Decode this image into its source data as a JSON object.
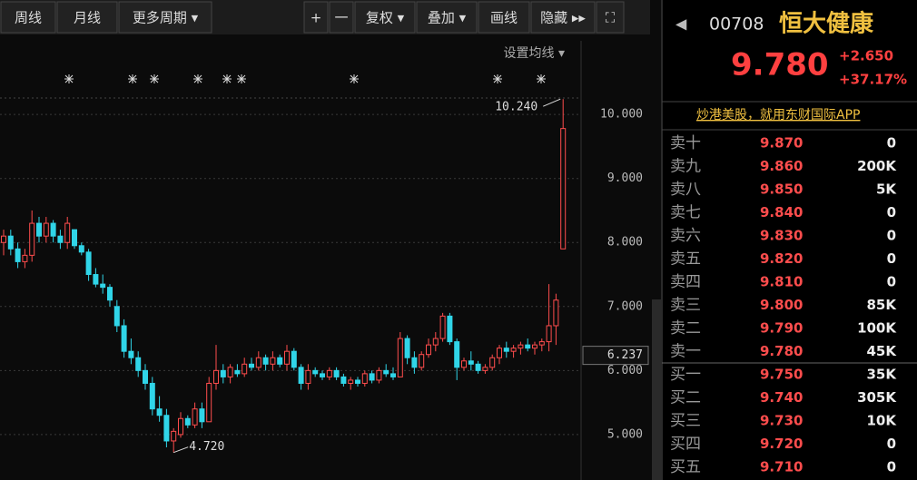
{
  "toolbar": {
    "left": [
      "周线",
      "月线",
      "更多周期 ▾"
    ],
    "right": [
      "+",
      "一",
      "复权 ▾",
      "叠加 ▾",
      "画线",
      "隐藏 ▸▸",
      "⛶"
    ],
    "ma_setting": "设置均线 ▾"
  },
  "quote": {
    "arrow": "◀",
    "code": "00708",
    "name": "恒大健康",
    "price": "9.780",
    "change": "+2.650",
    "change_pct": "+37.17%",
    "banner": "炒港美股，就用东财国际APP"
  },
  "order_book": {
    "asks": [
      [
        "卖十",
        "9.870",
        "0"
      ],
      [
        "卖九",
        "9.860",
        "200K"
      ],
      [
        "卖八",
        "9.850",
        "5K"
      ],
      [
        "卖七",
        "9.840",
        "0"
      ],
      [
        "卖六",
        "9.830",
        "0"
      ],
      [
        "卖五",
        "9.820",
        "0"
      ],
      [
        "卖四",
        "9.810",
        "0"
      ],
      [
        "卖三",
        "9.800",
        "85K"
      ],
      [
        "卖二",
        "9.790",
        "100K"
      ],
      [
        "卖一",
        "9.780",
        "45K"
      ]
    ],
    "bids": [
      [
        "买一",
        "9.750",
        "35K"
      ],
      [
        "买二",
        "9.740",
        "305K"
      ],
      [
        "买三",
        "9.730",
        "10K"
      ],
      [
        "买四",
        "9.720",
        "0"
      ],
      [
        "买五",
        "9.710",
        "0"
      ]
    ]
  },
  "chart_data": {
    "type": "candlestick",
    "up_color": "#ff4d4d",
    "down_color": "#30d5e8",
    "ylim": [
      4.29,
      11.15
    ],
    "yticks": [
      {
        "value": 5,
        "label": "5.000"
      },
      {
        "value": 6,
        "label": "6.000"
      },
      {
        "value": 7,
        "label": "7.000"
      },
      {
        "value": 8,
        "label": "8.000"
      },
      {
        "value": 9,
        "label": "9.000"
      },
      {
        "value": 10,
        "label": "10.000"
      }
    ],
    "high_label": {
      "index": 79,
      "value": 10.24,
      "label": "10.240"
    },
    "low_label": {
      "index": 24,
      "value": 4.72,
      "label": "4.720"
    },
    "cursor": {
      "value": 6.237,
      "label": "6.237"
    },
    "candles": [
      [
        8.0,
        8.2,
        7.8,
        8.1
      ],
      [
        8.1,
        8.2,
        7.8,
        7.9
      ],
      [
        7.9,
        8.0,
        7.6,
        7.7
      ],
      [
        7.7,
        7.9,
        7.6,
        7.8
      ],
      [
        7.8,
        8.5,
        7.7,
        8.3
      ],
      [
        8.3,
        8.4,
        8.0,
        8.1
      ],
      [
        8.1,
        8.4,
        8.0,
        8.3
      ],
      [
        8.3,
        8.35,
        8.0,
        8.1
      ],
      [
        8.1,
        8.2,
        7.9,
        8.0
      ],
      [
        8.0,
        8.4,
        7.9,
        8.3
      ],
      [
        8.2,
        8.2,
        7.9,
        7.95
      ],
      [
        7.95,
        8.0,
        7.8,
        7.85
      ],
      [
        7.85,
        7.9,
        7.4,
        7.5
      ],
      [
        7.5,
        7.6,
        7.3,
        7.35
      ],
      [
        7.35,
        7.5,
        7.2,
        7.3
      ],
      [
        7.3,
        7.35,
        7.0,
        7.1
      ],
      [
        7.0,
        7.1,
        6.6,
        6.7
      ],
      [
        6.7,
        6.8,
        6.2,
        6.3
      ],
      [
        6.3,
        6.5,
        6.1,
        6.2
      ],
      [
        6.2,
        6.3,
        5.9,
        6.0
      ],
      [
        6.0,
        6.1,
        5.7,
        5.8
      ],
      [
        5.8,
        5.9,
        5.3,
        5.4
      ],
      [
        5.4,
        5.6,
        5.2,
        5.3
      ],
      [
        5.3,
        5.4,
        4.8,
        4.9
      ],
      [
        4.9,
        5.1,
        4.72,
        5.05
      ],
      [
        5.0,
        5.35,
        4.95,
        5.25
      ],
      [
        5.25,
        5.3,
        5.1,
        5.15
      ],
      [
        5.15,
        5.5,
        5.1,
        5.4
      ],
      [
        5.4,
        5.5,
        5.1,
        5.2
      ],
      [
        5.2,
        5.9,
        5.2,
        5.8
      ],
      [
        5.8,
        6.4,
        5.7,
        6.0
      ],
      [
        6.0,
        6.1,
        5.8,
        5.9
      ],
      [
        5.9,
        6.1,
        5.8,
        6.05
      ],
      [
        6.0,
        6.1,
        5.9,
        5.95
      ],
      [
        5.95,
        6.2,
        5.9,
        6.1
      ],
      [
        6.1,
        6.2,
        6.0,
        6.05
      ],
      [
        6.05,
        6.3,
        6.0,
        6.2
      ],
      [
        6.2,
        6.25,
        6.0,
        6.1
      ],
      [
        6.1,
        6.3,
        6.0,
        6.2
      ],
      [
        6.2,
        6.25,
        6.05,
        6.1
      ],
      [
        6.1,
        6.4,
        6.0,
        6.3
      ],
      [
        6.3,
        6.35,
        6.0,
        6.05
      ],
      [
        6.05,
        6.1,
        5.7,
        5.8
      ],
      [
        5.8,
        6.1,
        5.7,
        6.0
      ],
      [
        6.0,
        6.05,
        5.9,
        5.95
      ],
      [
        5.95,
        6.0,
        5.85,
        5.9
      ],
      [
        5.9,
        6.05,
        5.85,
        6.0
      ],
      [
        6.0,
        6.05,
        5.85,
        5.9
      ],
      [
        5.9,
        5.95,
        5.75,
        5.8
      ],
      [
        5.8,
        5.9,
        5.7,
        5.85
      ],
      [
        5.85,
        5.9,
        5.75,
        5.8
      ],
      [
        5.8,
        6.0,
        5.75,
        5.95
      ],
      [
        5.95,
        6.0,
        5.8,
        5.85
      ],
      [
        5.85,
        6.05,
        5.8,
        6.0
      ],
      [
        6.0,
        6.1,
        5.9,
        5.95
      ],
      [
        5.95,
        6.05,
        5.85,
        5.9
      ],
      [
        5.9,
        6.6,
        5.9,
        6.5
      ],
      [
        6.5,
        6.55,
        6.1,
        6.2
      ],
      [
        6.2,
        6.3,
        5.95,
        6.05
      ],
      [
        6.05,
        6.3,
        6.0,
        6.25
      ],
      [
        6.25,
        6.5,
        6.2,
        6.4
      ],
      [
        6.4,
        6.6,
        6.3,
        6.5
      ],
      [
        6.5,
        6.9,
        6.45,
        6.85
      ],
      [
        6.85,
        6.9,
        6.4,
        6.45
      ],
      [
        6.45,
        6.5,
        5.85,
        6.05
      ],
      [
        6.05,
        6.2,
        6.0,
        6.15
      ],
      [
        6.15,
        6.3,
        6.0,
        6.1
      ],
      [
        6.1,
        6.15,
        5.95,
        6.0
      ],
      [
        6.0,
        6.1,
        5.95,
        6.05
      ],
      [
        6.05,
        6.25,
        6.0,
        6.2
      ],
      [
        6.2,
        6.4,
        6.1,
        6.35
      ],
      [
        6.35,
        6.45,
        6.2,
        6.3
      ],
      [
        6.3,
        6.4,
        6.2,
        6.35
      ],
      [
        6.35,
        6.45,
        6.25,
        6.4
      ],
      [
        6.4,
        6.5,
        6.3,
        6.35
      ],
      [
        6.35,
        6.45,
        6.25,
        6.4
      ],
      [
        6.4,
        6.5,
        6.3,
        6.45
      ],
      [
        6.45,
        7.35,
        6.3,
        6.7
      ],
      [
        6.7,
        7.2,
        6.4,
        7.1
      ],
      [
        7.9,
        10.24,
        7.9,
        9.78
      ]
    ]
  }
}
